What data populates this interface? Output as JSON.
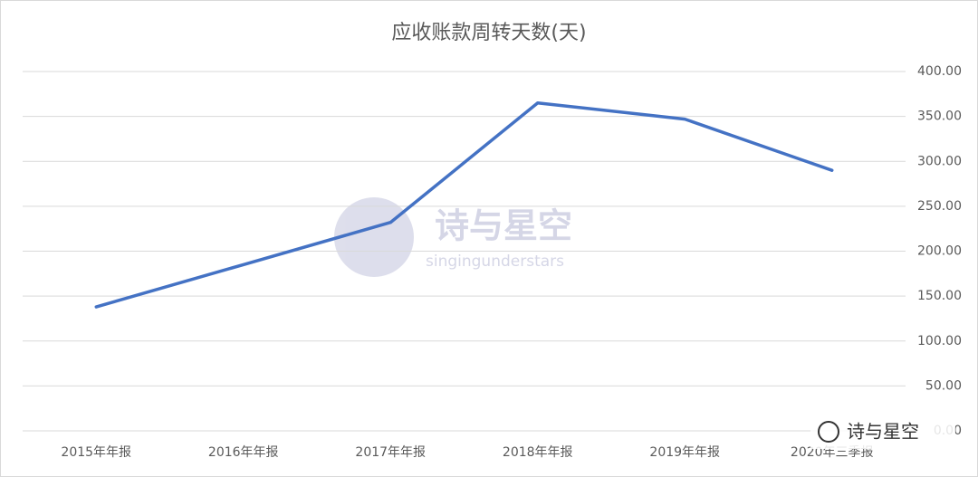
{
  "chart_data": {
    "type": "line",
    "title": "应收账款周转天数(天)",
    "categories": [
      "2015年年报",
      "2016年年报",
      "2017年年报",
      "2018年年报",
      "2019年年报",
      "2020年三季报"
    ],
    "series": [
      {
        "name": "应收账款周转天数",
        "color": "#4472c4",
        "values": [
          138,
          185,
          232,
          365,
          347,
          290
        ]
      }
    ],
    "ylim": [
      0,
      400
    ],
    "yticks": [
      {
        "value": 0,
        "label": "0.00"
      },
      {
        "value": 50,
        "label": "50.00"
      },
      {
        "value": 100,
        "label": "100.00"
      },
      {
        "value": 150,
        "label": "150.00"
      },
      {
        "value": 200,
        "label": "200.00"
      },
      {
        "value": 250,
        "label": "250.00"
      },
      {
        "value": 300,
        "label": "300.00"
      },
      {
        "value": 350,
        "label": "350.00"
      },
      {
        "value": 400,
        "label": "400.00"
      }
    ],
    "y_axis_side": "right",
    "grid": true
  },
  "watermarks": {
    "center_title": "诗与星空",
    "center_subtitle": "singingunderstars",
    "corner": "诗与星空"
  }
}
